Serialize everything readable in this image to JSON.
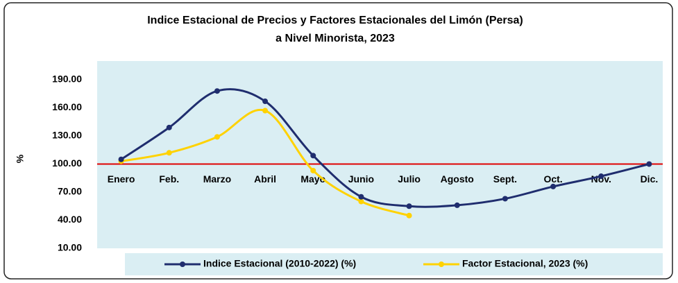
{
  "chart_data": {
    "type": "line",
    "title": "Indice Estacional de Precios y Factores Estacionales del Limón (Persa)",
    "subtitle": "a Nivel Minorista, 2023",
    "y_label": "%",
    "categories": [
      "Enero",
      "Feb.",
      "Marzo",
      "Abril",
      "Mayo",
      "Junio",
      "Julio",
      "Agosto",
      "Sept.",
      "Oct.",
      "Nov.",
      "Dic."
    ],
    "series": [
      {
        "name": "Indice Estacional (2010-2022) (%)",
        "color": "#1f2d6e",
        "values": [
          105,
          139,
          178,
          167,
          109,
          65,
          55,
          56,
          63,
          76,
          87,
          100
        ]
      },
      {
        "name": "Factor Estacional, 2023 (%)",
        "color": "#ffd200",
        "values": [
          103,
          112,
          129,
          157,
          93,
          60,
          45,
          null,
          null,
          null,
          null,
          null
        ]
      }
    ],
    "ylim": [
      10,
      210
    ],
    "yticks": [
      {
        "value": 10,
        "label": "10.00"
      },
      {
        "value": 40,
        "label": "40.00"
      },
      {
        "value": 70,
        "label": "70.00"
      },
      {
        "value": 100,
        "label": "100.00"
      },
      {
        "value": 130,
        "label": "130.00"
      },
      {
        "value": 160,
        "label": "160.00"
      },
      {
        "value": 190,
        "label": "190.00"
      }
    ],
    "reference_line": {
      "value": 100,
      "color": "#e00000"
    },
    "smooth": true
  }
}
